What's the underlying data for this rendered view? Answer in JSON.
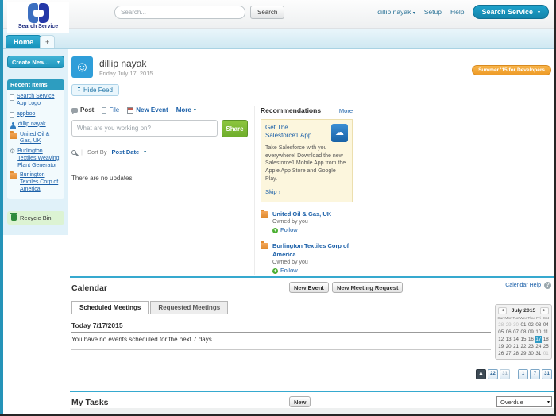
{
  "icons": {
    "smiley": "☺",
    "cloud": "☁",
    "gear": "⚙",
    "dropdown": "▾",
    "prev": "◄",
    "next": "►",
    "plus_tab": "+",
    "question": "?",
    "collapse": "▴",
    "plus": "+"
  },
  "colors": {
    "accent_teal": "#1b9cc4",
    "share_green": "#7ab544",
    "banner_orange": "#f0a136",
    "link_blue": "#1a5fa8",
    "today_bg": "#2e9ac4",
    "sidebar_bg": "#e0f1f9"
  },
  "header": {
    "logo_text": "Search Service",
    "search_placeholder": "Search...",
    "search_button": "Search",
    "user_menu": "dillip nayak",
    "setup_link": "Setup",
    "help_link": "Help",
    "app_switcher": "Search Service"
  },
  "tabs": {
    "home": "Home",
    "add": "+"
  },
  "sidebar": {
    "create_new": "Create New...",
    "recent_items_title": "Recent Items",
    "recent_items": [
      {
        "label": "Search Service App Logo",
        "icon": "document"
      },
      {
        "label": "appboo",
        "icon": "document"
      },
      {
        "label": "dillip nayak",
        "icon": "person"
      },
      {
        "label": "United Oil & Gas, UK",
        "icon": "account"
      },
      {
        "label": "Burlington Textiles Weaving Plant Generator",
        "icon": "generator"
      },
      {
        "label": "Burlington Textiles Corp of America",
        "icon": "account"
      }
    ],
    "recycle_bin": "Recycle Bin"
  },
  "main": {
    "user_name": "dillip nayak",
    "date": "Friday July 17, 2015",
    "release_banner": "Summer '15 for Developers",
    "hide_feed": "Hide Feed",
    "publisher": {
      "tabs": [
        "Post",
        "File",
        "New Event",
        "More"
      ],
      "input_placeholder": "What are you working on?",
      "share_button": "Share"
    },
    "sort_by_label": "Sort By",
    "sort_by_value": "Post Date",
    "empty_feed": "There are no updates."
  },
  "recommendations": {
    "title": "Recommendations",
    "more_link": "More",
    "card": {
      "title": "Get The Salesforce1 App",
      "body": "Take Salesforce with you everywhere! Download the new Salesforce1 Mobile App from the Apple App Store and Google Play.",
      "skip": "Skip ›"
    },
    "items": [
      {
        "name": "United Oil & Gas, UK",
        "owner": "Owned by you",
        "action": "Follow"
      },
      {
        "name": "Burlington Textiles Corp of America",
        "owner": "Owned by you",
        "action": "Follow"
      }
    ]
  },
  "calendar": {
    "title": "Calendar",
    "new_event_button": "New Event",
    "new_meeting_request_button": "New Meeting Request",
    "help_link": "Calendar Help",
    "tabs": [
      "Scheduled Meetings",
      "Requested Meetings"
    ],
    "today_label": "Today 7/17/2015",
    "empty_message": "You have no events scheduled for the next 7 days.",
    "mini": {
      "month": "July 2015",
      "day_headers": [
        "Sun",
        "Mon",
        "Tue",
        "Wed",
        "Thu",
        "Fri",
        "Sat"
      ],
      "cells": [
        {
          "v": "28",
          "m": 1
        },
        {
          "v": "29",
          "m": 1
        },
        {
          "v": "30",
          "m": 1
        },
        {
          "v": "01"
        },
        {
          "v": "02"
        },
        {
          "v": "03"
        },
        {
          "v": "04"
        },
        {
          "v": "05"
        },
        {
          "v": "06"
        },
        {
          "v": "07"
        },
        {
          "v": "08"
        },
        {
          "v": "09"
        },
        {
          "v": "10"
        },
        {
          "v": "11"
        },
        {
          "v": "12"
        },
        {
          "v": "13"
        },
        {
          "v": "14"
        },
        {
          "v": "15"
        },
        {
          "v": "16"
        },
        {
          "v": "17",
          "t": 1
        },
        {
          "v": "18"
        },
        {
          "v": "19"
        },
        {
          "v": "20"
        },
        {
          "v": "21"
        },
        {
          "v": "22"
        },
        {
          "v": "23"
        },
        {
          "v": "24"
        },
        {
          "v": "25"
        },
        {
          "v": "26"
        },
        {
          "v": "27"
        },
        {
          "v": "28"
        },
        {
          "v": "29"
        },
        {
          "v": "30"
        },
        {
          "v": "31"
        },
        {
          "v": "01",
          "m": 1
        }
      ],
      "today": "17"
    },
    "view_buttons": [
      {
        "name": "single-user-day-view",
        "glyph": "♟",
        "selected": true
      },
      {
        "name": "multi-user-day-view",
        "glyph": "22"
      },
      {
        "name": "activity-list-view",
        "glyph": "31",
        "dim": true
      },
      {
        "name": "day-view",
        "glyph": "1"
      },
      {
        "name": "week-view",
        "glyph": "7"
      },
      {
        "name": "month-view",
        "glyph": "31"
      }
    ]
  },
  "tasks": {
    "title": "My Tasks",
    "new_button": "New",
    "filter_value": "Overdue"
  }
}
